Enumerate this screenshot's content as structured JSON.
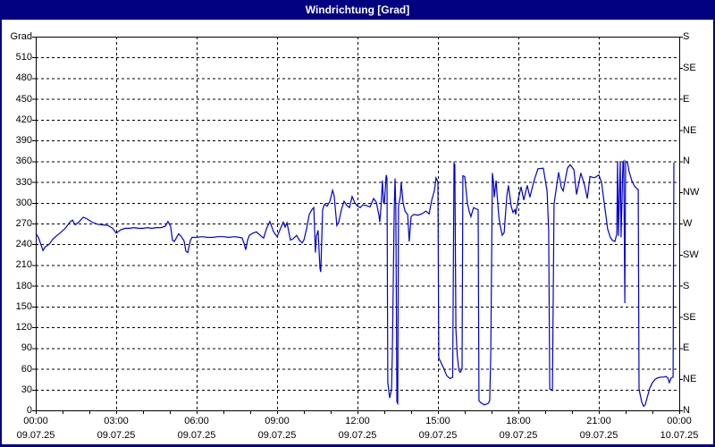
{
  "window": {
    "title": "Windrichtung [Grad]"
  },
  "colors": {
    "titlebar_bg": "#000080",
    "titlebar_text": "#ffffff",
    "frame_border": "#000080",
    "background": "#ffffff",
    "grid_line": "#000000",
    "axis_text": "#000000",
    "chart_line": "#0000cc"
  },
  "chart_data": {
    "type": "line",
    "title": "Windrichtung [Grad]",
    "y_axis_left": {
      "label": "Grad",
      "min": 0,
      "max": 540,
      "tick_step": 30,
      "ticks": [
        0,
        30,
        60,
        90,
        120,
        150,
        180,
        210,
        240,
        270,
        300,
        330,
        360,
        390,
        420,
        450,
        480,
        510
      ]
    },
    "y_axis_right": {
      "tick_step": 45,
      "ticks": [
        {
          "deg": 0,
          "label": "N"
        },
        {
          "deg": 45,
          "label": "NE"
        },
        {
          "deg": 90,
          "label": "E"
        },
        {
          "deg": 135,
          "label": "SE"
        },
        {
          "deg": 180,
          "label": "S"
        },
        {
          "deg": 225,
          "label": "SW"
        },
        {
          "deg": 270,
          "label": "W"
        },
        {
          "deg": 315,
          "label": "NW"
        },
        {
          "deg": 360,
          "label": "N"
        },
        {
          "deg": 405,
          "label": "NE"
        },
        {
          "deg": 450,
          "label": "E"
        },
        {
          "deg": 495,
          "label": "SE"
        },
        {
          "deg": 540,
          "label": "S"
        }
      ]
    },
    "x_axis": {
      "range_hours": [
        0,
        24
      ],
      "major_tick_step_hours": 3,
      "minor_tick_step_hours": 1,
      "ticks": [
        {
          "hour": 0,
          "time": "00:00",
          "date": "09.07.25"
        },
        {
          "hour": 3,
          "time": "03:00",
          "date": "09.07.25"
        },
        {
          "hour": 6,
          "time": "06:00",
          "date": "09.07.25"
        },
        {
          "hour": 9,
          "time": "09:00",
          "date": "09.07.25"
        },
        {
          "hour": 12,
          "time": "12:00",
          "date": "09.07.25"
        },
        {
          "hour": 15,
          "time": "15:00",
          "date": "09.07.25"
        },
        {
          "hour": 18,
          "time": "18:00",
          "date": "09.07.25"
        },
        {
          "hour": 21,
          "time": "21:00",
          "date": "09.07.25"
        },
        {
          "hour": 24,
          "time": "00:00",
          "date": "10.07.25"
        }
      ]
    },
    "grid": {
      "horizontal_step_deg": 30,
      "vertical_step_hours": 3,
      "style": "dashed"
    },
    "series": [
      {
        "name": "Windrichtung",
        "color": "#0000cc",
        "points": [
          [
            0.0,
            256
          ],
          [
            0.1,
            250
          ],
          [
            0.27,
            231
          ],
          [
            0.35,
            236
          ],
          [
            0.5,
            240
          ],
          [
            0.63,
            247
          ],
          [
            0.77,
            252
          ],
          [
            0.9,
            256
          ],
          [
            1.1,
            263
          ],
          [
            1.27,
            272
          ],
          [
            1.37,
            275
          ],
          [
            1.47,
            268
          ],
          [
            1.6,
            272
          ],
          [
            1.77,
            279
          ],
          [
            1.9,
            277
          ],
          [
            2.1,
            272
          ],
          [
            2.3,
            269
          ],
          [
            2.5,
            268
          ],
          [
            2.7,
            267
          ],
          [
            2.87,
            263
          ],
          [
            3.0,
            256
          ],
          [
            3.17,
            261
          ],
          [
            3.33,
            263
          ],
          [
            3.5,
            263
          ],
          [
            3.67,
            264
          ],
          [
            3.83,
            263
          ],
          [
            4.0,
            263
          ],
          [
            4.17,
            264
          ],
          [
            4.33,
            263
          ],
          [
            4.5,
            264
          ],
          [
            4.67,
            264
          ],
          [
            4.83,
            266
          ],
          [
            4.93,
            273
          ],
          [
            5.03,
            266
          ],
          [
            5.1,
            246
          ],
          [
            5.17,
            244
          ],
          [
            5.27,
            251
          ],
          [
            5.33,
            255
          ],
          [
            5.43,
            251
          ],
          [
            5.53,
            245
          ],
          [
            5.6,
            230
          ],
          [
            5.67,
            228
          ],
          [
            5.77,
            246
          ],
          [
            5.83,
            250
          ],
          [
            6.0,
            250
          ],
          [
            6.2,
            251
          ],
          [
            6.4,
            250
          ],
          [
            6.6,
            250
          ],
          [
            6.8,
            251
          ],
          [
            7.0,
            251
          ],
          [
            7.2,
            250
          ],
          [
            7.4,
            251
          ],
          [
            7.6,
            250
          ],
          [
            7.7,
            249
          ],
          [
            7.77,
            241
          ],
          [
            7.83,
            232
          ],
          [
            7.9,
            246
          ],
          [
            7.97,
            253
          ],
          [
            8.1,
            256
          ],
          [
            8.23,
            258
          ],
          [
            8.37,
            253
          ],
          [
            8.5,
            249
          ],
          [
            8.6,
            262
          ],
          [
            8.73,
            273
          ],
          [
            8.87,
            258
          ],
          [
            9.0,
            251
          ],
          [
            9.1,
            260
          ],
          [
            9.23,
            272
          ],
          [
            9.3,
            265
          ],
          [
            9.37,
            271
          ],
          [
            9.5,
            246
          ],
          [
            9.6,
            248
          ],
          [
            9.73,
            253
          ],
          [
            9.83,
            246
          ],
          [
            9.93,
            242
          ],
          [
            10.0,
            246
          ],
          [
            10.1,
            262
          ],
          [
            10.2,
            283
          ],
          [
            10.3,
            290
          ],
          [
            10.37,
            293
          ],
          [
            10.43,
            228
          ],
          [
            10.47,
            252
          ],
          [
            10.53,
            260
          ],
          [
            10.6,
            205
          ],
          [
            10.63,
            200
          ],
          [
            10.7,
            290
          ],
          [
            10.77,
            298
          ],
          [
            10.87,
            295
          ],
          [
            10.97,
            302
          ],
          [
            11.07,
            318
          ],
          [
            11.13,
            310
          ],
          [
            11.23,
            267
          ],
          [
            11.3,
            272
          ],
          [
            11.4,
            290
          ],
          [
            11.5,
            302
          ],
          [
            11.6,
            296
          ],
          [
            11.7,
            293
          ],
          [
            11.8,
            309
          ],
          [
            11.9,
            300
          ],
          [
            12.0,
            295
          ],
          [
            12.1,
            293
          ],
          [
            12.2,
            297
          ],
          [
            12.33,
            296
          ],
          [
            12.47,
            294
          ],
          [
            12.6,
            306
          ],
          [
            12.7,
            301
          ],
          [
            12.8,
            282
          ],
          [
            12.83,
            272
          ],
          [
            12.87,
            290
          ],
          [
            12.93,
            332
          ],
          [
            12.97,
            300
          ],
          [
            13.0,
            299
          ],
          [
            13.07,
            340
          ],
          [
            13.1,
            335
          ],
          [
            13.13,
            40
          ],
          [
            13.2,
            18
          ],
          [
            13.27,
            30
          ],
          [
            13.3,
            85
          ],
          [
            13.37,
            290
          ],
          [
            13.4,
            335
          ],
          [
            13.43,
            290
          ],
          [
            13.47,
            12
          ],
          [
            13.5,
            10
          ],
          [
            13.53,
            295
          ],
          [
            13.6,
            310
          ],
          [
            13.63,
            330
          ],
          [
            13.7,
            300
          ],
          [
            13.77,
            288
          ],
          [
            13.87,
            283
          ],
          [
            13.93,
            244
          ],
          [
            14.0,
            280
          ],
          [
            14.1,
            283
          ],
          [
            14.25,
            282
          ],
          [
            14.4,
            284
          ],
          [
            14.55,
            288
          ],
          [
            14.67,
            284
          ],
          [
            14.77,
            304
          ],
          [
            14.87,
            318
          ],
          [
            14.93,
            336
          ],
          [
            15.0,
            330
          ],
          [
            15.03,
            76
          ],
          [
            15.1,
            70
          ],
          [
            15.2,
            62
          ],
          [
            15.33,
            50
          ],
          [
            15.45,
            46
          ],
          [
            15.55,
            48
          ],
          [
            15.6,
            357
          ],
          [
            15.63,
            355
          ],
          [
            15.67,
            117
          ],
          [
            15.72,
            80
          ],
          [
            15.78,
            58
          ],
          [
            15.83,
            55
          ],
          [
            15.9,
            60
          ],
          [
            15.93,
            339
          ],
          [
            16.0,
            338
          ],
          [
            16.07,
            310
          ],
          [
            16.1,
            299
          ],
          [
            16.17,
            287
          ],
          [
            16.23,
            280
          ],
          [
            16.33,
            293
          ],
          [
            16.43,
            291
          ],
          [
            16.5,
            290
          ],
          [
            16.53,
            14
          ],
          [
            16.6,
            11
          ],
          [
            16.73,
            8
          ],
          [
            16.87,
            10
          ],
          [
            16.93,
            14
          ],
          [
            16.97,
            80
          ],
          [
            17.03,
            343
          ],
          [
            17.07,
            330
          ],
          [
            17.1,
            308
          ],
          [
            17.17,
            332
          ],
          [
            17.2,
            315
          ],
          [
            17.27,
            280
          ],
          [
            17.33,
            265
          ],
          [
            17.4,
            253
          ],
          [
            17.47,
            257
          ],
          [
            17.57,
            310
          ],
          [
            17.63,
            325
          ],
          [
            17.73,
            295
          ],
          [
            17.8,
            286
          ],
          [
            17.87,
            290
          ],
          [
            17.9,
            283
          ],
          [
            18.0,
            306
          ],
          [
            18.1,
            323
          ],
          [
            18.2,
            304
          ],
          [
            18.33,
            325
          ],
          [
            18.43,
            308
          ],
          [
            18.57,
            330
          ],
          [
            18.73,
            349
          ],
          [
            18.93,
            350
          ],
          [
            19.07,
            317
          ],
          [
            19.13,
            260
          ],
          [
            19.17,
            31
          ],
          [
            19.27,
            29
          ],
          [
            19.33,
            298
          ],
          [
            19.5,
            344
          ],
          [
            19.6,
            322
          ],
          [
            19.67,
            317
          ],
          [
            19.83,
            350
          ],
          [
            19.93,
            355
          ],
          [
            20.07,
            348
          ],
          [
            20.17,
            312
          ],
          [
            20.33,
            343
          ],
          [
            20.47,
            325
          ],
          [
            20.57,
            306
          ],
          [
            20.67,
            338
          ],
          [
            20.83,
            336
          ],
          [
            21.0,
            340
          ],
          [
            21.1,
            330
          ],
          [
            21.2,
            300
          ],
          [
            21.33,
            262
          ],
          [
            21.43,
            250
          ],
          [
            21.5,
            246
          ],
          [
            21.6,
            244
          ],
          [
            21.67,
            255
          ],
          [
            21.7,
            360
          ],
          [
            21.73,
            252
          ],
          [
            21.8,
            360
          ],
          [
            21.83,
            250
          ],
          [
            21.9,
            358
          ],
          [
            21.93,
            360
          ],
          [
            21.97,
            155
          ],
          [
            22.0,
            360
          ],
          [
            22.07,
            358
          ],
          [
            22.13,
            345
          ],
          [
            22.23,
            332
          ],
          [
            22.33,
            324
          ],
          [
            22.43,
            320
          ],
          [
            22.47,
            319
          ],
          [
            22.5,
            31
          ],
          [
            22.53,
            25
          ],
          [
            22.6,
            12
          ],
          [
            22.67,
            6
          ],
          [
            22.73,
            8
          ],
          [
            22.8,
            18
          ],
          [
            22.9,
            32
          ],
          [
            23.0,
            40
          ],
          [
            23.1,
            45
          ],
          [
            23.2,
            47
          ],
          [
            23.33,
            48
          ],
          [
            23.43,
            48
          ],
          [
            23.5,
            49
          ],
          [
            23.57,
            47
          ],
          [
            23.63,
            40
          ],
          [
            23.7,
            47
          ],
          [
            23.77,
            48
          ],
          [
            23.8,
            358
          ]
        ]
      }
    ]
  }
}
